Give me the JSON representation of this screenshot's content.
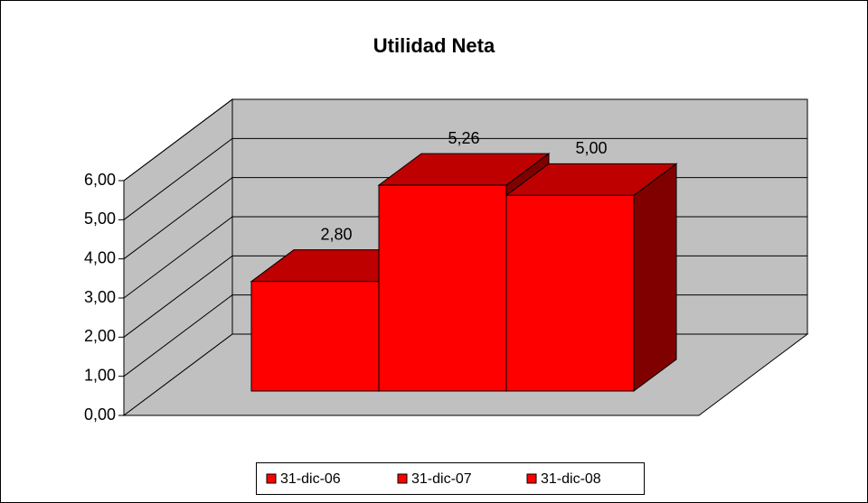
{
  "chart_data": {
    "type": "bar3d",
    "title": "Utilidad Neta",
    "categories": [
      null
    ],
    "series": [
      {
        "name": "31-dic-06",
        "color": "#ff0000",
        "values": [
          2.8
        ],
        "value_labels": [
          "2,80"
        ]
      },
      {
        "name": "31-dic-07",
        "color": "#ff0000",
        "values": [
          5.26
        ],
        "value_labels": [
          "5,26"
        ]
      },
      {
        "name": "31-dic-08",
        "color": "#ff0000",
        "values": [
          5.0
        ],
        "value_labels": [
          "5,00"
        ]
      }
    ],
    "ylim": [
      0,
      6
    ],
    "yticks": [
      {
        "value": 0,
        "label": "0,00"
      },
      {
        "value": 1,
        "label": "1,00"
      },
      {
        "value": 2,
        "label": "2,00"
      },
      {
        "value": 3,
        "label": "3,00"
      },
      {
        "value": 4,
        "label": "4,00"
      },
      {
        "value": 5,
        "label": "5,00"
      },
      {
        "value": 6,
        "label": "6,00"
      }
    ],
    "grid": true,
    "legend": "bottom"
  }
}
